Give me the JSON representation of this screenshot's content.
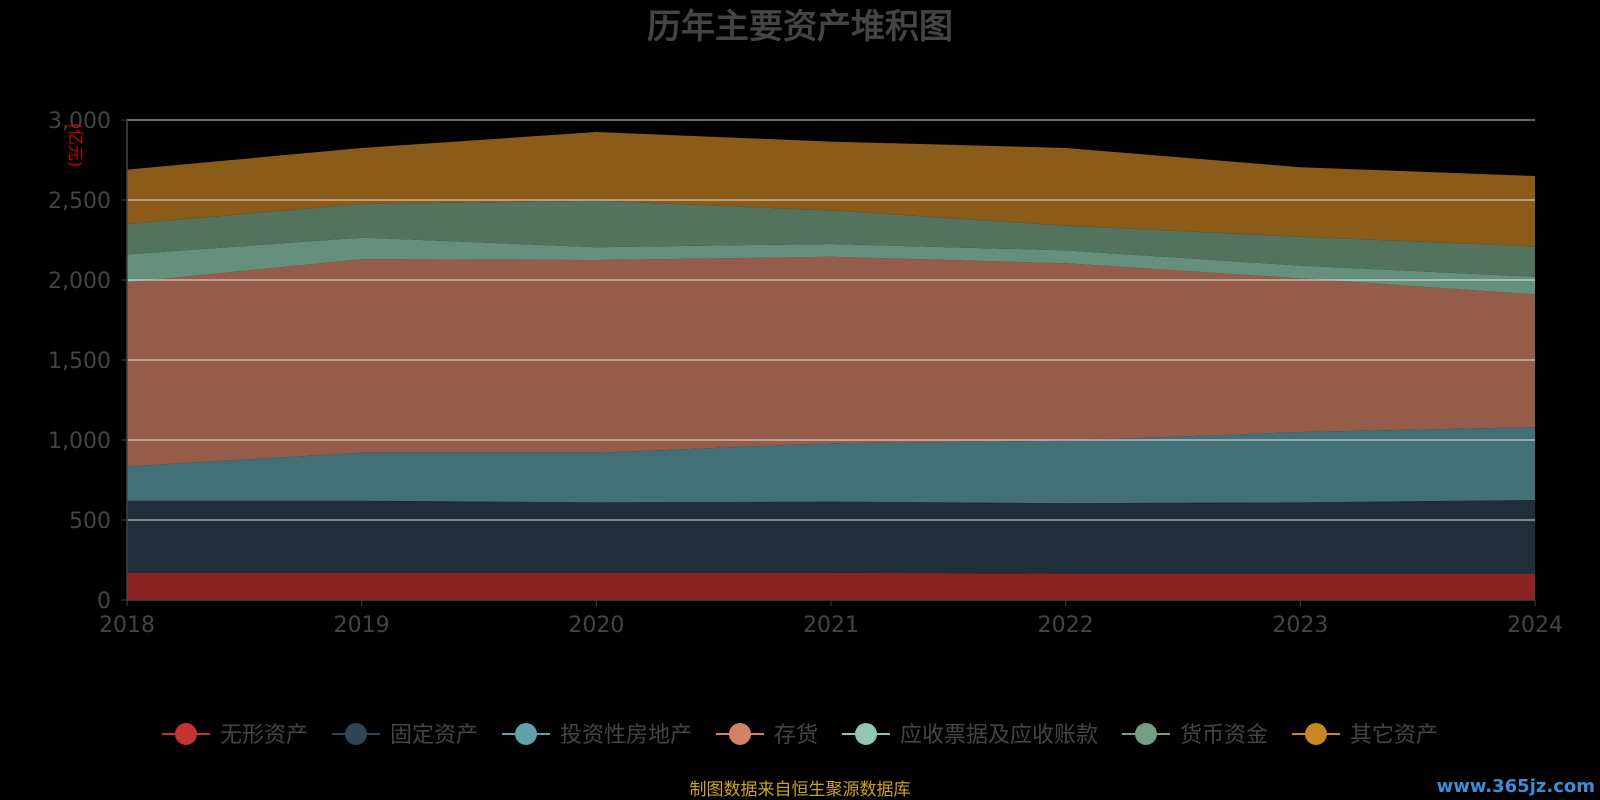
{
  "chart_data": {
    "type": "area",
    "stacked": true,
    "title": "历年主要资产堆积图",
    "ylabel": "(亿元)",
    "x": [
      "2018",
      "2019",
      "2020",
      "2021",
      "2022",
      "2023",
      "2024"
    ],
    "ylim": [
      0,
      3000
    ],
    "yticks": [
      "0",
      "500",
      "1,000",
      "1,500",
      "2,000",
      "2,500",
      "3,000"
    ],
    "grid": true,
    "legend_position": "bottom",
    "series": [
      {
        "name": "无形资产",
        "color": "#c23531",
        "fill": "#8b2323",
        "values": [
          170,
          170,
          170,
          170,
          165,
          165,
          165
        ]
      },
      {
        "name": "固定资产",
        "color": "#2f4554",
        "fill": "#1f2e3a",
        "values": [
          450,
          450,
          440,
          445,
          440,
          445,
          460
        ]
      },
      {
        "name": "投资性房地产",
        "color": "#61a0a8",
        "fill": "#437077",
        "values": [
          215,
          300,
          310,
          365,
          390,
          440,
          455
        ]
      },
      {
        "name": "存货",
        "color": "#d48265",
        "fill": "#955c4a",
        "values": [
          1150,
          1210,
          1205,
          1165,
          1110,
          960,
          830
        ]
      },
      {
        "name": "应收票据及应收账款",
        "color": "#91c7ae",
        "fill": "#66907e",
        "values": [
          175,
          135,
          80,
          80,
          80,
          80,
          110
        ]
      },
      {
        "name": "货币资金",
        "color": "#749f83",
        "fill": "#53735f",
        "values": [
          190,
          210,
          290,
          210,
          155,
          180,
          190
        ]
      },
      {
        "name": "其它资产",
        "color": "#ca8622",
        "fill": "#8b5b19",
        "values": [
          340,
          350,
          430,
          430,
          485,
          435,
          440
        ]
      }
    ]
  },
  "footer": {
    "source": "制图数据来自恒生聚源数据库",
    "watermark": "www.365jz.com"
  }
}
